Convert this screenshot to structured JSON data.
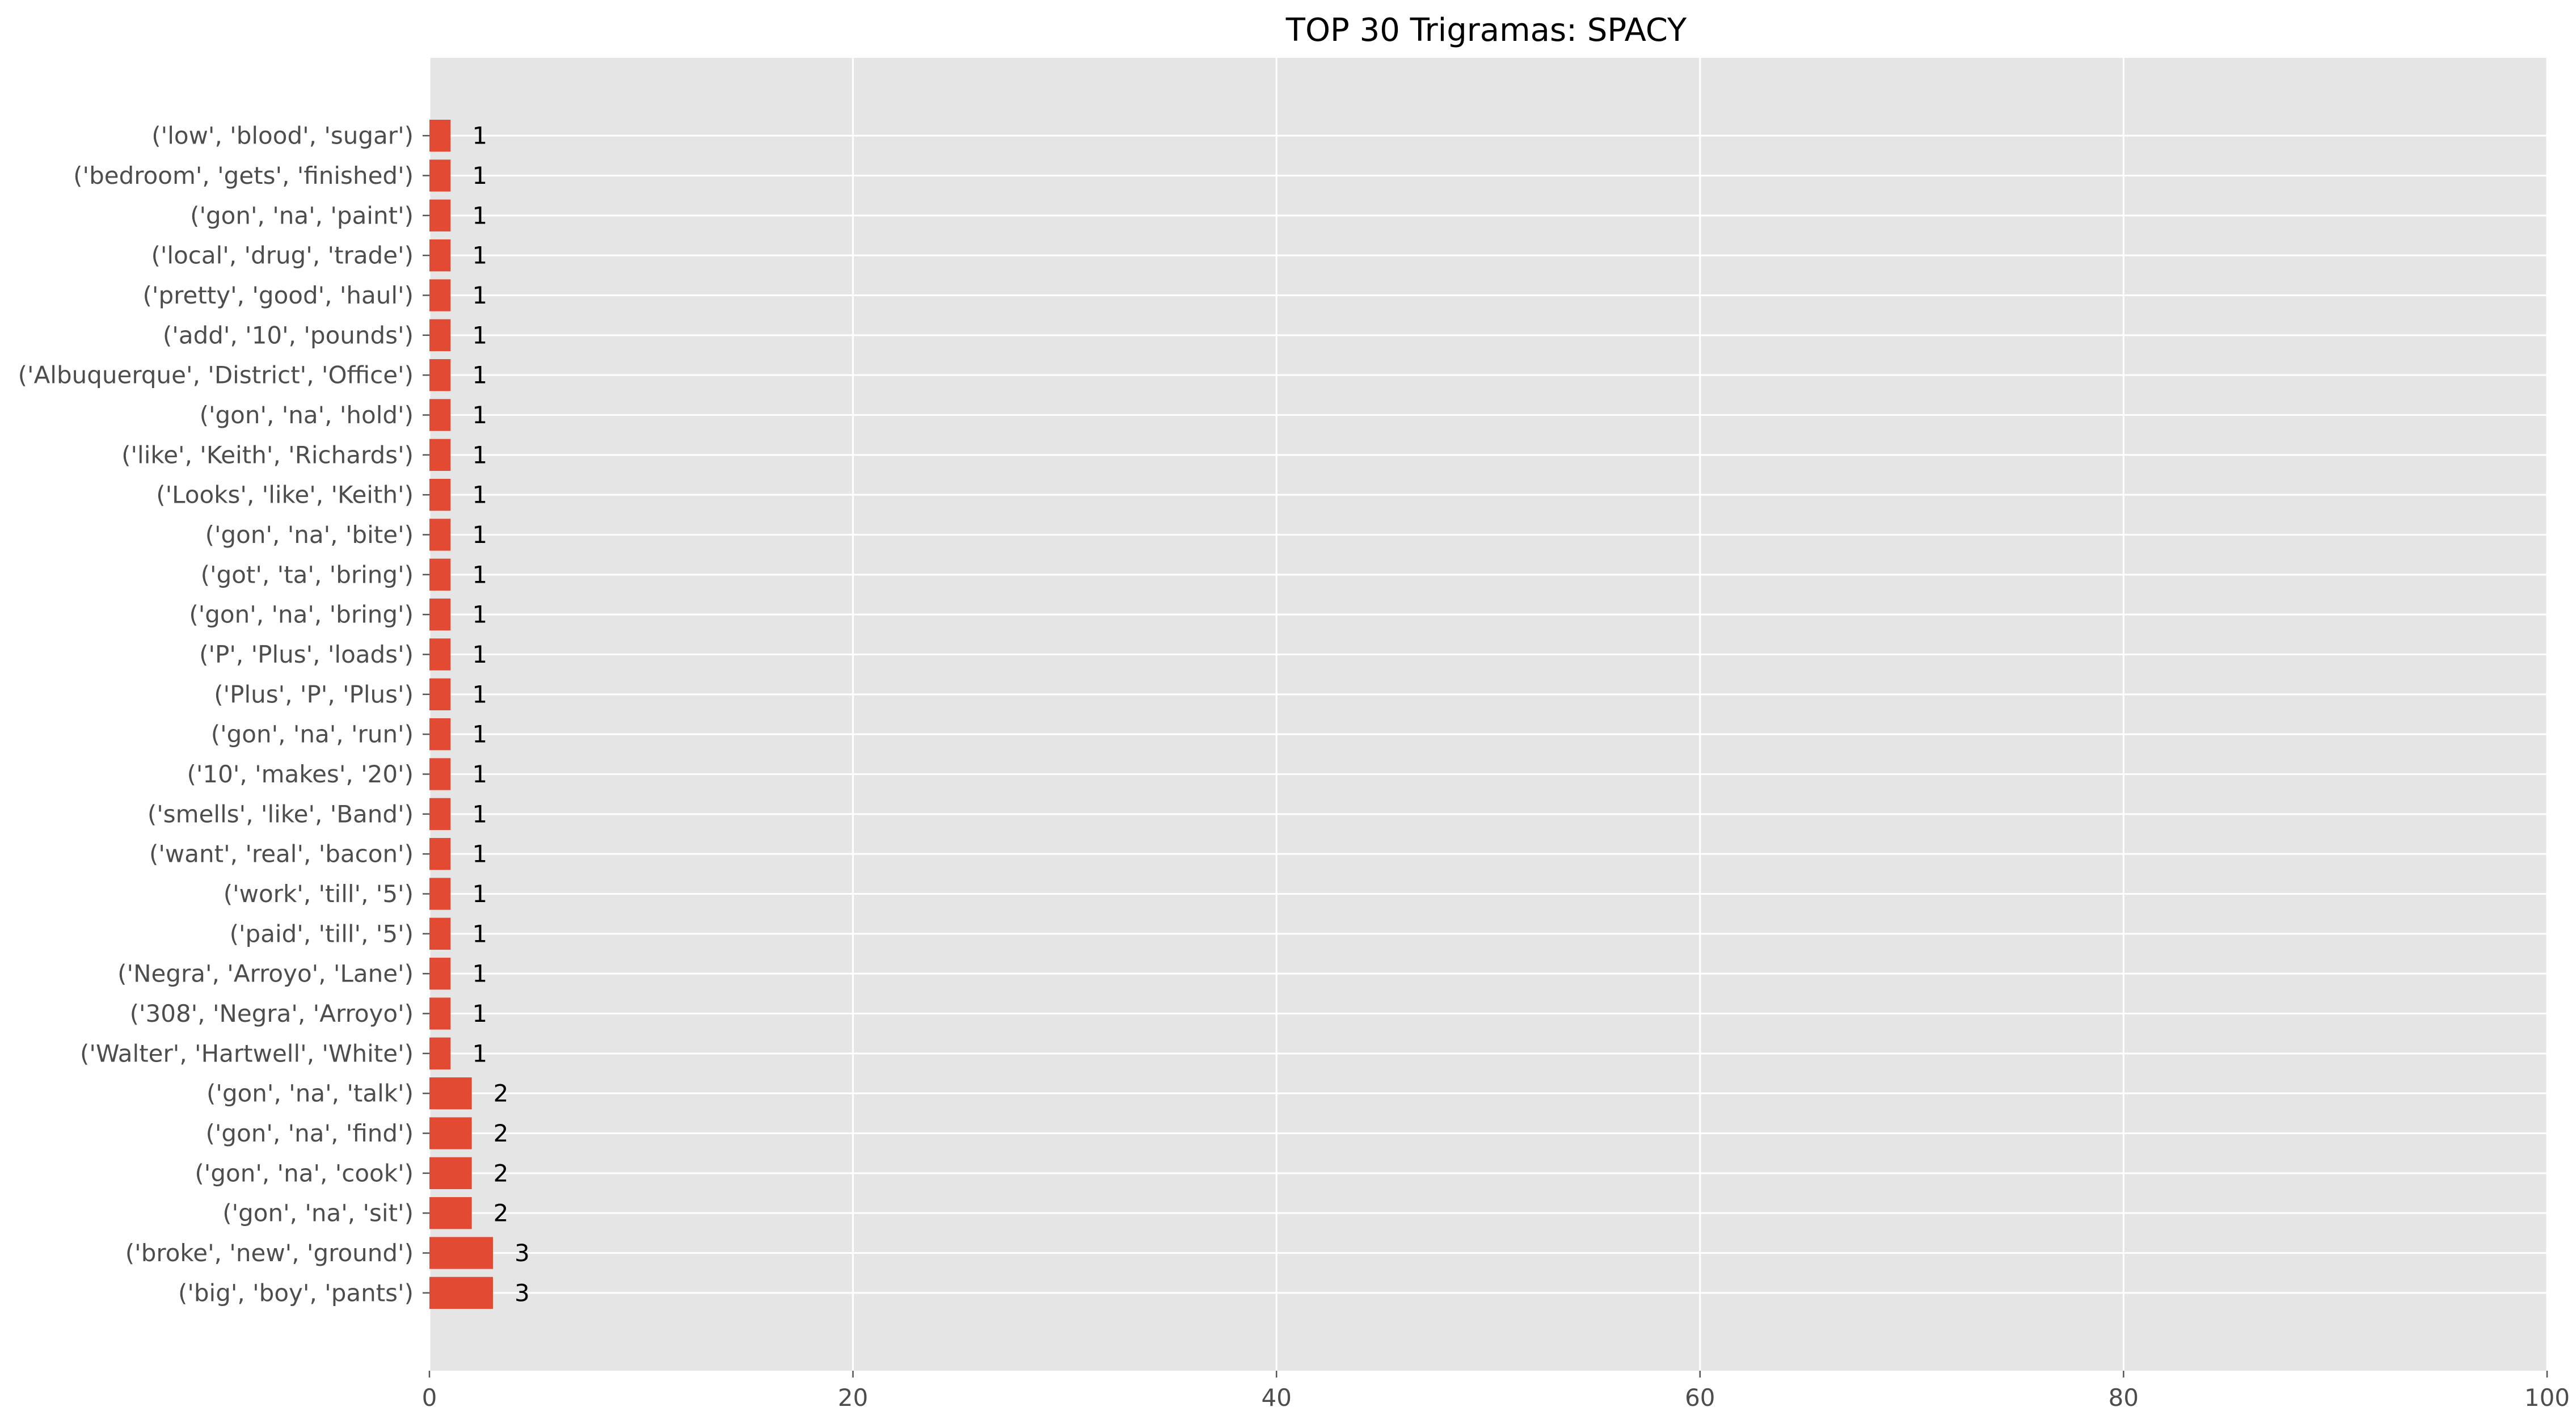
{
  "chart_data": {
    "type": "bar",
    "orientation": "horizontal",
    "title": "TOP 30 Trigramas: SPACY",
    "xlabel": "",
    "ylabel": "",
    "xlim": [
      0,
      100
    ],
    "xticks": [
      "0",
      "20",
      "40",
      "60",
      "80",
      "100"
    ],
    "grid": true,
    "categories": [
      "('low', 'blood', 'sugar')",
      "('bedroom', 'gets', 'finished')",
      "('gon', 'na', 'paint')",
      "('local', 'drug', 'trade')",
      "('pretty', 'good', 'haul')",
      "('add', '10', 'pounds')",
      "('Albuquerque', 'District', 'Office')",
      "('gon', 'na', 'hold')",
      "('like', 'Keith', 'Richards')",
      "('Looks', 'like', 'Keith')",
      "('gon', 'na', 'bite')",
      "('got', 'ta', 'bring')",
      "('gon', 'na', 'bring')",
      "('P', 'Plus', 'loads')",
      "('Plus', 'P', 'Plus')",
      "('gon', 'na', 'run')",
      "('10', 'makes', '20')",
      "('smells', 'like', 'Band')",
      "('want', 'real', 'bacon')",
      "('work', 'till', '5')",
      "('paid', 'till', '5')",
      "('Negra', 'Arroyo', 'Lane')",
      "('308', 'Negra', 'Arroyo')",
      "('Walter', 'Hartwell', 'White')",
      "('gon', 'na', 'talk')",
      "('gon', 'na', 'find')",
      "('gon', 'na', 'cook')",
      "('gon', 'na', 'sit')",
      "('broke', 'new', 'ground')",
      "('big', 'boy', 'pants')"
    ],
    "values": [
      1,
      1,
      1,
      1,
      1,
      1,
      1,
      1,
      1,
      1,
      1,
      1,
      1,
      1,
      1,
      1,
      1,
      1,
      1,
      1,
      1,
      1,
      1,
      1,
      2,
      2,
      2,
      2,
      3,
      3
    ],
    "bar_color": "#e24a33",
    "plot_background": "#e5e5e5",
    "grid_color": "#ffffff"
  }
}
